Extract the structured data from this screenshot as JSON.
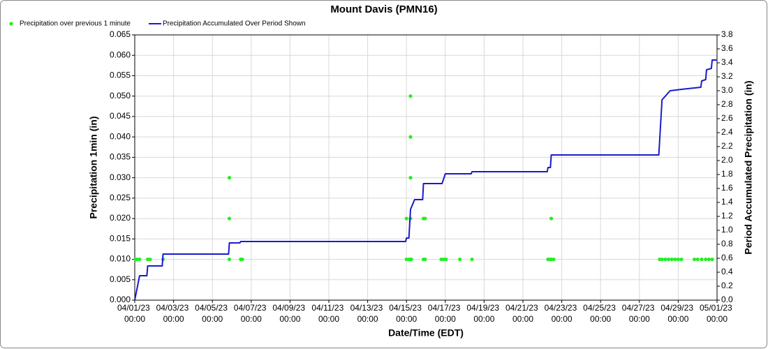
{
  "chart_data": {
    "type": "line",
    "title": "Mount Davis (PMN16)",
    "x_label": "Date/Time (EDT)",
    "y_label": "Precipitation 1min (in)",
    "y2_label": "Period Accumulated Precipitation (in)",
    "xlim": [
      "04/01/23 00:00",
      "05/01/23 00:00"
    ],
    "xticks": [
      "04/01/23 00:00",
      "04/03/23 00:00",
      "04/05/23 00:00",
      "04/07/23 00:00",
      "04/09/23 00:00",
      "04/11/23 00:00",
      "04/13/23 00:00",
      "04/15/23 00:00",
      "04/17/23 00:00",
      "04/19/23 00:00",
      "04/21/23 00:00",
      "04/23/23 00:00",
      "04/25/23 00:00",
      "04/27/23 00:00",
      "04/29/23 00:00",
      "05/01/23 00:00"
    ],
    "ylim": [
      0,
      0.065
    ],
    "yticks": [
      {
        "value": 0,
        "label": "0.000"
      },
      0.005,
      {
        "value": 0.01,
        "label": "0.010"
      },
      0.015,
      {
        "value": 0.02,
        "label": "0.020"
      },
      0.025,
      {
        "value": 0.03,
        "label": "0.030"
      },
      0.035,
      {
        "value": 0.04,
        "label": "0.040"
      },
      0.045,
      {
        "value": 0.05,
        "label": "0.050"
      },
      0.055,
      {
        "value": 0.06,
        "label": "0.060"
      },
      0.065
    ],
    "y2lim": [
      0,
      3.8
    ],
    "y2ticks": [
      {
        "value": 0,
        "label": "0.0"
      },
      0.2,
      0.4,
      0.6,
      0.8,
      {
        "value": 1,
        "label": "1.0"
      },
      1.2,
      1.4,
      1.6,
      1.8,
      {
        "value": 2,
        "label": "2.0"
      },
      2.2,
      2.4,
      2.6,
      2.8,
      {
        "value": 3,
        "label": "3.0"
      },
      3.2,
      3.4,
      3.6,
      3.8
    ],
    "grid": true,
    "legend": "top-left",
    "series": [
      {
        "name": "Precipitation over previous 1 minute",
        "type": "scatter",
        "color": "#22ee22",
        "x": [
          "04/01/23 01:00",
          "04/01/23 03:00",
          "04/01/23 06:00",
          "04/01/23 16:00",
          "04/01/23 19:00",
          "04/02/23 11:00",
          "04/05/23 21:00",
          "04/05/23 21:00",
          "04/05/23 21:00",
          "04/06/23 11:00",
          "04/06/23 13:00",
          "04/15/23 00:00",
          "04/15/23 00:00",
          "04/15/23 03:00",
          "04/15/23 05:00",
          "04/15/23 05:00",
          "04/15/23 05:00",
          "04/15/23 05:00",
          "04/15/23 05:00",
          "04/15/23 06:00",
          "04/15/23 21:00",
          "04/15/23 21:00",
          "04/15/23 23:00",
          "04/15/23 23:00",
          "04/16/23 19:00",
          "04/16/23 22:00",
          "04/17/23 01:00",
          "04/17/23 18:00",
          "04/18/23 09:00",
          "04/22/23 07:00",
          "04/22/23 09:00",
          "04/22/23 11:00",
          "04/22/23 11:00",
          "04/22/23 14:00",
          "04/28/23 01:00",
          "04/28/23 04:00",
          "04/28/23 08:00",
          "04/28/23 12:00",
          "04/28/23 16:00",
          "04/28/23 20:00",
          "04/29/23 00:00",
          "04/29/23 04:00",
          "04/29/23 20:00",
          "04/30/23 00:00",
          "04/30/23 05:00",
          "04/30/23 10:00",
          "04/30/23 14:00",
          "04/30/23 18:00"
        ],
        "values": [
          0.01,
          0.01,
          0.01,
          0.01,
          0.01,
          0.01,
          0.03,
          0.02,
          0.01,
          0.01,
          0.01,
          0.02,
          0.01,
          0.01,
          0.05,
          0.04,
          0.03,
          0.02,
          0.01,
          0.01,
          0.02,
          0.01,
          0.02,
          0.01,
          0.01,
          0.01,
          0.01,
          0.01,
          0.01,
          0.01,
          0.01,
          0.02,
          0.01,
          0.01,
          0.01,
          0.01,
          0.01,
          0.01,
          0.01,
          0.01,
          0.01,
          0.01,
          0.01,
          0.01,
          0.01,
          0.01,
          0.01,
          0.01
        ]
      },
      {
        "name": "Precipitation Accumulated Over Period Shown",
        "type": "line",
        "axis": "y2",
        "color": "#1a1acc",
        "x": [
          "04/01/23 00:00",
          "04/01/23 06:00",
          "04/01/23 15:00",
          "04/01/23 16:00",
          "04/02/23 10:00",
          "04/02/23 11:00",
          "04/05/23 20:00",
          "04/05/23 21:00",
          "04/06/23 10:00",
          "04/06/23 11:00",
          "04/14/23 23:00",
          "04/15/23 00:00",
          "04/15/23 03:00",
          "04/15/23 05:00",
          "04/15/23 10:00",
          "04/15/23 20:00",
          "04/15/23 21:00",
          "04/16/23 20:00",
          "04/17/23 00:00",
          "04/18/23 08:00",
          "04/18/23 09:00",
          "04/22/23 06:00",
          "04/22/23 07:00",
          "04/22/23 10:00",
          "04/22/23 11:00",
          "04/28/23 00:00",
          "04/28/23 04:00",
          "04/28/23 14:00",
          "04/29/23 04:00",
          "04/29/23 20:00",
          "04/30/23 04:00",
          "04/30/23 05:00",
          "04/30/23 10:00",
          "04/30/23 11:00",
          "04/30/23 17:00",
          "04/30/23 18:00",
          "05/01/23 00:00"
        ],
        "values": [
          0,
          0.35,
          0.35,
          0.49,
          0.49,
          0.66,
          0.66,
          0.82,
          0.82,
          0.84,
          0.84,
          0.89,
          0.89,
          1.3,
          1.44,
          1.44,
          1.67,
          1.67,
          1.81,
          1.81,
          1.84,
          1.84,
          1.9,
          1.9,
          2.08,
          2.08,
          2.87,
          3.0,
          3.02,
          3.04,
          3.05,
          3.14,
          3.16,
          3.3,
          3.32,
          3.44,
          3.44
        ]
      }
    ]
  }
}
